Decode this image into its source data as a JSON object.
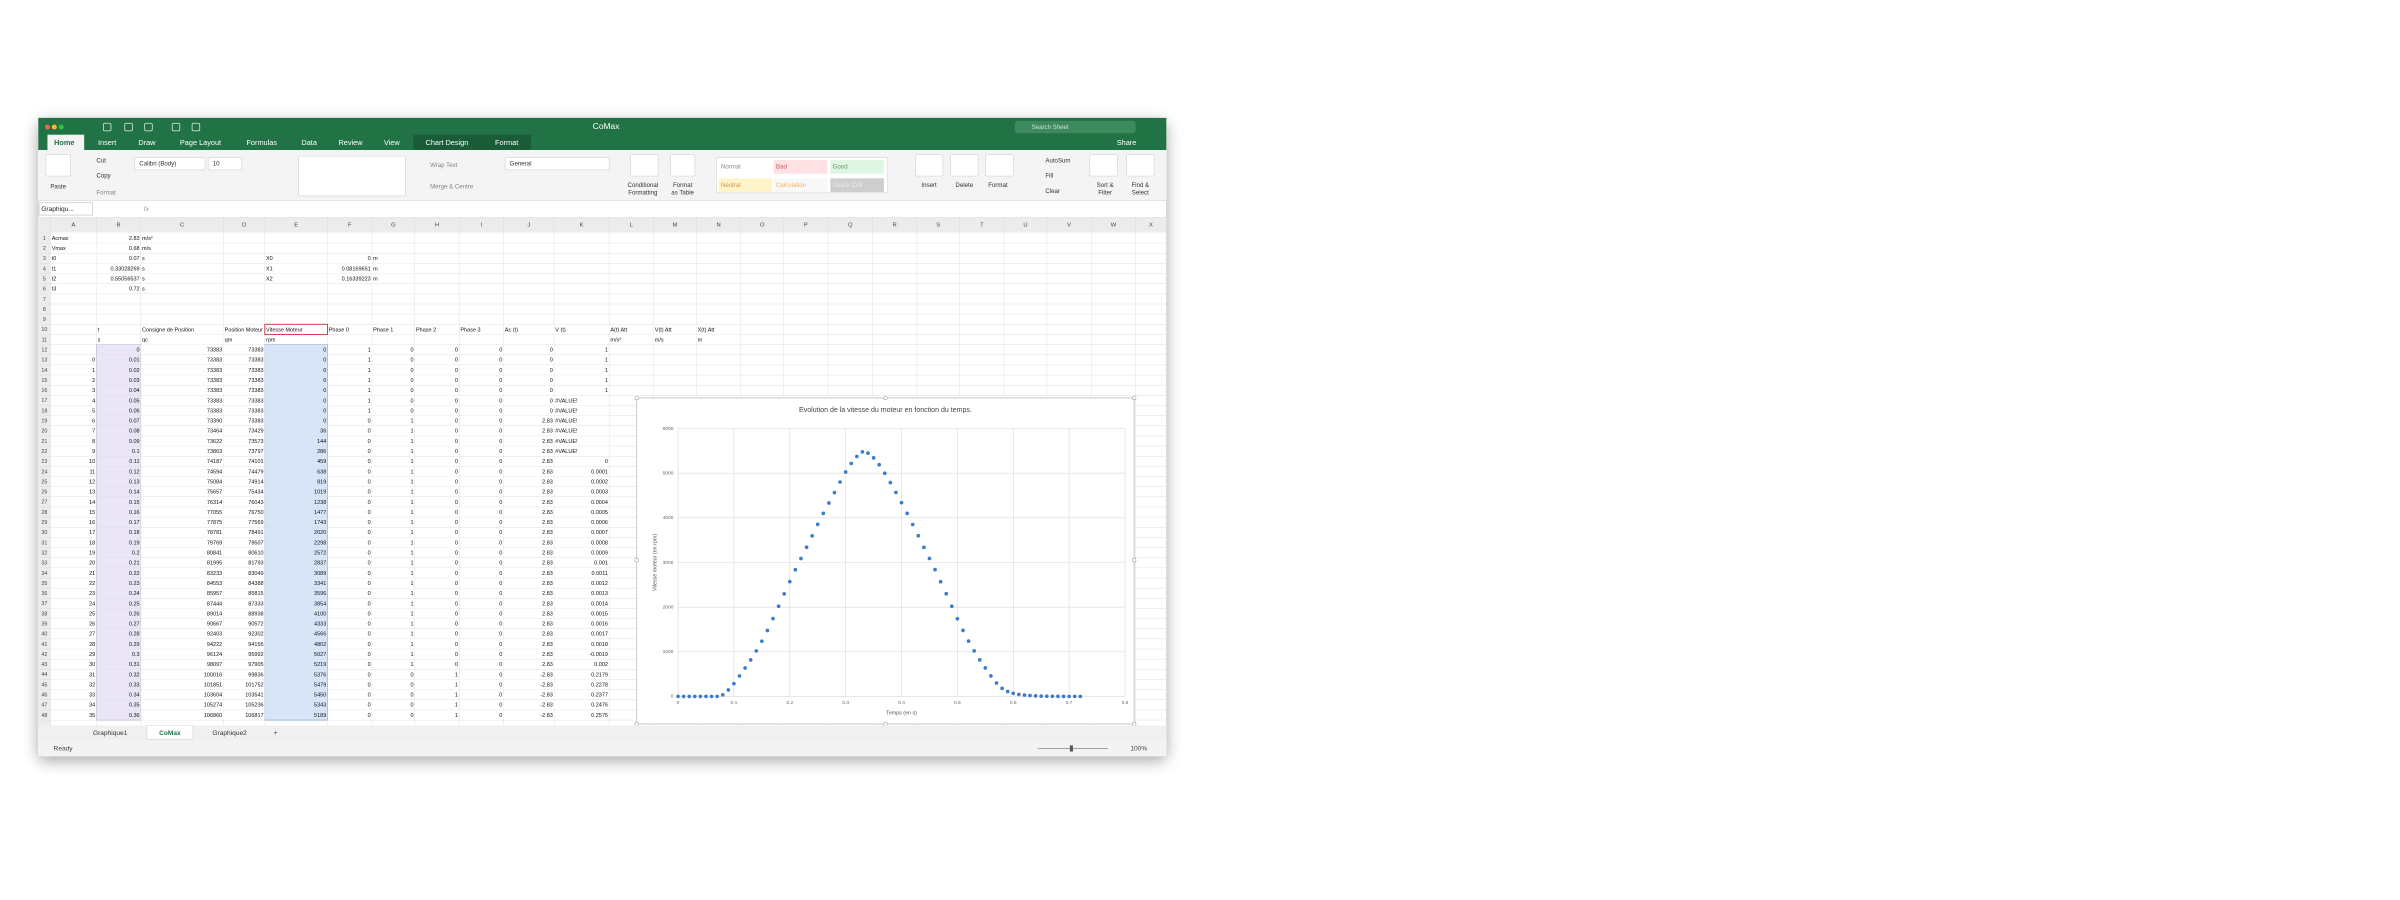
{
  "window_title": "CoMax",
  "search_placeholder": "Search Sheet",
  "share": "Share",
  "ribbon_tabs": [
    "Home",
    "Insert",
    "Draw",
    "Page Layout",
    "Formulas",
    "Data",
    "Review",
    "View",
    "Chart Design",
    "Format"
  ],
  "ribbon_labels": [
    "Paste",
    "Cut",
    "Copy",
    "Format",
    "Calibri (Body)",
    "10",
    "Wrap Text",
    "Merge & Centre",
    "General",
    "Conditional",
    "Formatting",
    "Format",
    "as Table",
    "Normal",
    "Bad",
    "Good",
    "Neutral",
    "Calculation",
    "Check Cell",
    "Insert",
    "Delete",
    "Format",
    "AutoSum",
    "Fill",
    "Clear",
    "Sort &",
    "Filter",
    "Find &",
    "Select"
  ],
  "name_box": "Graphiqu...",
  "formula_fx": "fx",
  "columns": [
    "A",
    "B",
    "C",
    "D",
    "E",
    "F",
    "G",
    "H",
    "I",
    "J",
    "K",
    "L",
    "M",
    "N",
    "O",
    "P",
    "Q",
    "R",
    "S",
    "T",
    "U",
    "V",
    "W",
    "X"
  ],
  "rows": [
    [
      "Acmax",
      2.83,
      "m/s²"
    ],
    [
      "Vmax",
      0.68,
      "m/s"
    ],
    [
      "t0",
      0.07,
      "s",
      null,
      "X0",
      0,
      "m"
    ],
    [
      "t1",
      0.33028269,
      "s",
      null,
      "X1",
      0.08169651,
      "m"
    ],
    [
      "t2",
      0.55056537,
      "s",
      null,
      "X2",
      0.16339223,
      "m"
    ],
    [
      "t3",
      0.72,
      "s"
    ],
    [],
    [],
    [],
    [
      null,
      "t",
      "Consigne de Position",
      "Position Moteur",
      "Vitesse Moteur",
      "Phase 0",
      "Phase 1",
      "Phase 2",
      "Phase 3",
      "Ac (t)",
      "V (t)",
      "A(t) Att",
      "V(t) Att",
      "X(t) Att"
    ],
    [
      null,
      "s",
      "qc",
      "qm",
      "rpm",
      null,
      null,
      null,
      null,
      null,
      null,
      "m/s²",
      "m/s",
      "m"
    ],
    [
      null,
      0,
      73383,
      73383,
      0,
      1,
      0,
      0,
      0,
      0,
      1
    ],
    [
      0,
      0.01,
      73383,
      73383,
      0,
      1,
      0,
      0,
      0,
      0,
      1
    ],
    [
      1,
      0.02,
      73383,
      73383,
      0,
      1,
      0,
      0,
      0,
      0,
      1
    ],
    [
      2,
      0.03,
      73383,
      73383,
      0,
      1,
      0,
      0,
      0,
      0,
      1
    ],
    [
      3,
      0.04,
      73383,
      73383,
      0,
      1,
      0,
      0,
      0,
      0,
      1
    ],
    [
      4,
      0.05,
      73383,
      73383,
      0,
      1,
      0,
      0,
      0,
      0,
      "#VALUE!"
    ],
    [
      5,
      0.06,
      73383,
      73383,
      0,
      1,
      0,
      0,
      0,
      0,
      "#VALUE!"
    ],
    [
      6,
      0.07,
      73390,
      73383,
      0,
      0,
      1,
      0,
      0,
      2.83,
      "#VALUE!"
    ],
    [
      7,
      0.08,
      73464,
      73429,
      36,
      0,
      1,
      0,
      0,
      2.83,
      "#VALUE!"
    ],
    [
      8,
      0.09,
      73622,
      73573,
      144,
      0,
      1,
      0,
      0,
      2.83,
      "#VALUE!"
    ],
    [
      9,
      0.1,
      73863,
      73797,
      286,
      0,
      1,
      0,
      0,
      2.83,
      "#VALUE!"
    ],
    [
      10,
      0.11,
      74187,
      74101,
      459,
      0,
      1,
      0,
      0,
      2.83,
      0
    ],
    [
      11,
      0.12,
      74594,
      74479,
      638,
      0,
      1,
      0,
      0,
      2.83,
      0.0001
    ],
    [
      12,
      0.13,
      75084,
      74914,
      819,
      0,
      1,
      0,
      0,
      2.83,
      0.0002
    ],
    [
      13,
      0.14,
      75657,
      75434,
      1019,
      0,
      1,
      0,
      0,
      2.83,
      0.0003
    ],
    [
      14,
      0.15,
      76314,
      76043,
      1238,
      0,
      1,
      0,
      0,
      2.83,
      0.0004
    ],
    [
      15,
      0.16,
      77055,
      76750,
      1477,
      0,
      1,
      0,
      0,
      2.83,
      0.0005
    ],
    [
      16,
      0.17,
      77875,
      77569,
      1743,
      0,
      1,
      0,
      0,
      2.83,
      0.0006
    ],
    [
      17,
      0.18,
      78781,
      78491,
      2020,
      0,
      1,
      0,
      0,
      2.83,
      0.0007
    ],
    [
      18,
      0.19,
      79769,
      79507,
      2298,
      0,
      1,
      0,
      0,
      2.83,
      0.0008
    ],
    [
      19,
      0.2,
      80841,
      80610,
      2572,
      0,
      1,
      0,
      0,
      2.83,
      0.0009
    ],
    [
      20,
      0.21,
      81995,
      81793,
      2837,
      0,
      1,
      0,
      0,
      2.83,
      0.001
    ],
    [
      21,
      0.22,
      83233,
      83049,
      3089,
      0,
      1,
      0,
      0,
      2.83,
      0.0011
    ],
    [
      22,
      0.23,
      84553,
      84388,
      3341,
      0,
      1,
      0,
      0,
      2.83,
      0.0012
    ],
    [
      23,
      0.24,
      85957,
      85815,
      3596,
      0,
      1,
      0,
      0,
      2.83,
      0.0013
    ],
    [
      24,
      0.25,
      87444,
      87333,
      3854,
      0,
      1,
      0,
      0,
      2.83,
      0.0014
    ],
    [
      25,
      0.26,
      89014,
      88938,
      4100,
      0,
      1,
      0,
      0,
      2.83,
      0.0015
    ],
    [
      26,
      0.27,
      90667,
      90572,
      4333,
      0,
      1,
      0,
      0,
      2.83,
      0.0016
    ],
    [
      27,
      0.28,
      92403,
      92302,
      4566,
      0,
      1,
      0,
      0,
      2.83,
      0.0017
    ],
    [
      28,
      0.29,
      94222,
      94155,
      4802,
      0,
      1,
      0,
      0,
      2.83,
      0.0018
    ],
    [
      29,
      0.3,
      96124,
      95992,
      5027,
      0,
      1,
      0,
      0,
      2.83,
      -0.0019
    ],
    [
      30,
      0.31,
      98097,
      97905,
      5219,
      0,
      1,
      0,
      0,
      2.83,
      0.002
    ],
    [
      31,
      0.32,
      100016,
      99836,
      5376,
      0,
      0,
      1,
      0,
      -2.83,
      0.2179
    ],
    [
      32,
      0.33,
      101851,
      101752,
      5479,
      0,
      0,
      1,
      0,
      -2.83,
      0.2278
    ],
    [
      33,
      0.34,
      103604,
      103541,
      5450,
      0,
      0,
      1,
      0,
      -2.83,
      0.2377
    ],
    [
      34,
      0.35,
      105274,
      105236,
      5343,
      0,
      0,
      1,
      0,
      -2.83,
      0.2476
    ],
    [
      35,
      0.36,
      106860,
      106817,
      5189,
      0,
      0,
      1,
      0,
      -2.83,
      0.2575
    ]
  ],
  "sheet_tabs": [
    "Graphique1",
    "CoMax",
    "Graphique2",
    "+"
  ],
  "status": "Ready",
  "zoom": "100%",
  "chart_data": {
    "type": "scatter",
    "title": "Evolution de la vitesse du moteur en fonction du temps.",
    "x_label": "Temps (en s)",
    "y_label": "Vitesse moteur (en rpm)",
    "color": "#3d7cc9",
    "grid": true,
    "x": [
      0,
      0.01,
      0.02,
      0.03,
      0.04,
      0.05,
      0.06,
      0.07,
      0.08,
      0.09,
      0.1,
      0.11,
      0.12,
      0.13,
      0.14,
      0.15,
      0.16,
      0.17,
      0.18,
      0.19,
      0.2,
      0.21,
      0.22,
      0.23,
      0.24,
      0.25,
      0.26,
      0.27,
      0.28,
      0.29,
      0.3,
      0.31,
      0.32,
      0.33,
      0.34,
      0.35,
      0.36,
      0.37,
      0.38,
      0.39,
      0.4,
      0.41,
      0.42,
      0.43,
      0.44,
      0.45,
      0.46,
      0.47,
      0.48,
      0.49,
      0.5,
      0.51,
      0.52,
      0.53,
      0.54,
      0.55,
      0.56,
      0.57,
      0.58,
      0.59,
      0.6,
      0.61,
      0.62,
      0.63,
      0.64,
      0.65,
      0.66,
      0.67,
      0.68,
      0.69,
      0.7,
      0.71,
      0.72
    ],
    "values": [
      0,
      0,
      0,
      0,
      0,
      0,
      0,
      0,
      36,
      144,
      286,
      459,
      638,
      819,
      1019,
      1238,
      1477,
      1743,
      2020,
      2298,
      2572,
      2837,
      3089,
      3341,
      3596,
      3854,
      4100,
      4333,
      4566,
      4802,
      5027,
      5219,
      5376,
      5479,
      5450,
      5343,
      5189,
      5000,
      4790,
      4570,
      4340,
      4100,
      3850,
      3600,
      3340,
      3090,
      2840,
      2570,
      2300,
      2020,
      1740,
      1480,
      1240,
      1020,
      820,
      640,
      460,
      300,
      180,
      110,
      70,
      45,
      30,
      20,
      12,
      8,
      5,
      3,
      2,
      1,
      0,
      0,
      0
    ],
    "xlim": [
      0,
      0.8
    ],
    "xticks": [
      0,
      0.1,
      0.2,
      0.3,
      0.4,
      0.5,
      0.6,
      0.7,
      0.8
    ],
    "ylim": [
      0,
      6000
    ],
    "yticks": [
      0,
      1000,
      2000,
      3000,
      4000,
      5000,
      6000
    ]
  }
}
